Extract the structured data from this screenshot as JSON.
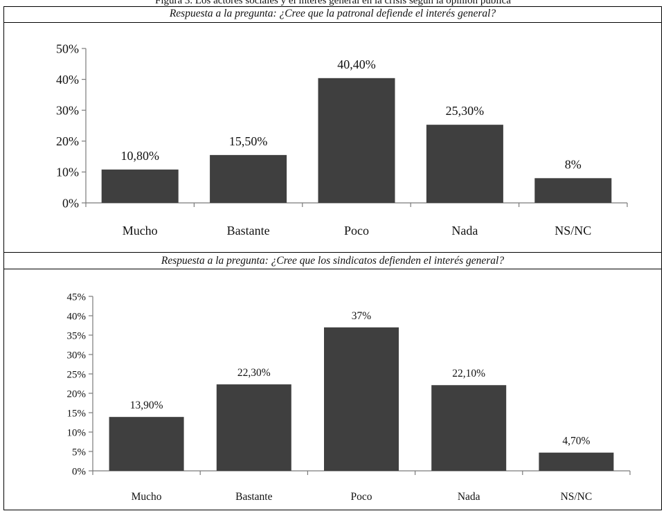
{
  "figure": {
    "title": "Figura 3. Los actores sociales y el interés general en la crisis según la opinión pública"
  },
  "chart_data": [
    {
      "type": "bar",
      "title": "Respuesta a la pregunta: ¿Cree que la patronal defiende el interés general?",
      "categories": [
        "Mucho",
        "Bastante",
        "Poco",
        "Nada",
        "NS/NC"
      ],
      "values": [
        10.8,
        15.5,
        40.4,
        25.3,
        8
      ],
      "data_labels": [
        "10,80%",
        "15,50%",
        "40,40%",
        "25,30%",
        "8%"
      ],
      "ylim": [
        0,
        50
      ],
      "yticks": [
        0,
        10,
        20,
        30,
        40,
        50
      ],
      "ytick_labels": [
        "0%",
        "10%",
        "20%",
        "30%",
        "40%",
        "50%"
      ],
      "bar_color": "#3f3f3f",
      "grid": false,
      "xlabel": "",
      "ylabel": ""
    },
    {
      "type": "bar",
      "title": "Respuesta a la pregunta: ¿Cree que los sindicatos defienden el interés general?",
      "categories": [
        "Mucho",
        "Bastante",
        "Poco",
        "Nada",
        "NS/NC"
      ],
      "values": [
        13.9,
        22.3,
        37,
        22.1,
        4.7
      ],
      "data_labels": [
        "13,90%",
        "22,30%",
        "37%",
        "22,10%",
        "4,70%"
      ],
      "ylim": [
        0,
        45
      ],
      "yticks": [
        0,
        5,
        10,
        15,
        20,
        25,
        30,
        35,
        40,
        45
      ],
      "ytick_labels": [
        "0%",
        "5%",
        "10%",
        "15%",
        "20%",
        "25%",
        "30%",
        "35%",
        "40%",
        "45%"
      ],
      "bar_color": "#3f3f3f",
      "grid": false,
      "xlabel": "",
      "ylabel": ""
    }
  ]
}
